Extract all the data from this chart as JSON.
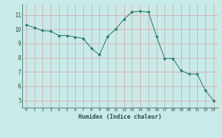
{
  "x": [
    0,
    1,
    2,
    3,
    4,
    5,
    6,
    7,
    8,
    9,
    10,
    11,
    12,
    13,
    14,
    15,
    16,
    17,
    18,
    19,
    20,
    21,
    22,
    23
  ],
  "y": [
    10.3,
    10.1,
    9.9,
    9.85,
    9.55,
    9.55,
    9.45,
    9.35,
    8.65,
    8.2,
    9.5,
    10.0,
    10.7,
    11.2,
    11.25,
    11.2,
    9.5,
    7.95,
    7.95,
    7.1,
    6.85,
    6.85,
    5.7,
    5.0
  ],
  "line_color": "#2e7d6e",
  "marker": "D",
  "marker_size": 2,
  "bg_color": "#c8eae8",
  "grid_color": "#d9a0a0",
  "xlabel": "Humidex (Indice chaleur)",
  "xlim": [
    -0.5,
    23.5
  ],
  "ylim": [
    4.5,
    11.75
  ],
  "xticks": [
    0,
    1,
    2,
    3,
    4,
    5,
    6,
    7,
    8,
    9,
    10,
    11,
    12,
    13,
    14,
    15,
    16,
    17,
    18,
    19,
    20,
    21,
    22,
    23
  ],
  "yticks": [
    5,
    6,
    7,
    8,
    9,
    10,
    11
  ],
  "font_color": "#2e4a4a"
}
